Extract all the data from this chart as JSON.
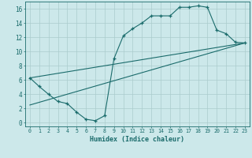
{
  "title": "",
  "xlabel": "Humidex (Indice chaleur)",
  "ylabel": "",
  "bg_color": "#cce8ea",
  "grid_color": "#aacccc",
  "line_color": "#1a6b6b",
  "xlim": [
    -0.5,
    23.5
  ],
  "ylim": [
    -0.5,
    17.0
  ],
  "xticks": [
    0,
    1,
    2,
    3,
    4,
    5,
    6,
    7,
    8,
    9,
    10,
    11,
    12,
    13,
    14,
    15,
    16,
    17,
    18,
    19,
    20,
    21,
    22,
    23
  ],
  "yticks": [
    0,
    2,
    4,
    6,
    8,
    10,
    12,
    14,
    16
  ],
  "curve_x": [
    0,
    1,
    2,
    3,
    4,
    5,
    6,
    7,
    8,
    9,
    10,
    11,
    12,
    13,
    14,
    15,
    16,
    17,
    18,
    19,
    20,
    21,
    22,
    23
  ],
  "curve_y": [
    6.3,
    5.1,
    4.0,
    3.0,
    2.7,
    1.5,
    0.5,
    0.3,
    1.0,
    9.0,
    12.2,
    13.2,
    14.0,
    15.0,
    15.0,
    15.0,
    16.2,
    16.2,
    16.4,
    16.2,
    13.0,
    12.5,
    11.3,
    11.2
  ],
  "trend1_x": [
    0,
    23
  ],
  "trend1_y": [
    6.3,
    11.2
  ],
  "trend2_x": [
    0,
    23
  ],
  "trend2_y": [
    2.5,
    11.2
  ]
}
